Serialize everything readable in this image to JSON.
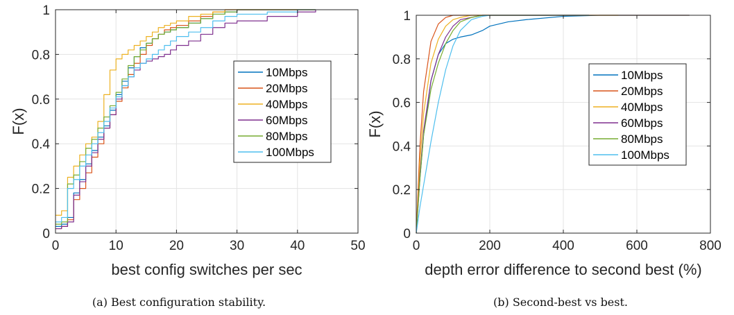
{
  "colors": [
    "#0072BD",
    "#D95319",
    "#EDB120",
    "#7E2F8E",
    "#77AC30",
    "#4DBEEE"
  ],
  "chart_data": [
    {
      "type": "line",
      "xlabel": "best config switches per sec",
      "ylabel": "F(x)",
      "xlim": [
        0,
        50
      ],
      "ylim": [
        0,
        1
      ],
      "xticks": [
        "0",
        "10",
        "20",
        "30",
        "40",
        "50"
      ],
      "yticks": [
        "0",
        "0.2",
        "0.4",
        "0.6",
        "0.8",
        "1"
      ],
      "grid": true,
      "legend_position": "center-right",
      "caption": "(a) Best configuration stability.",
      "series": [
        {
          "name": "10Mbps",
          "x": [
            0,
            1,
            2,
            3,
            4,
            5,
            6,
            7,
            8,
            9,
            10,
            11,
            12,
            13,
            14,
            15,
            16,
            17,
            18,
            19,
            20,
            22,
            24,
            26,
            28,
            30,
            35,
            40,
            43
          ],
          "y": [
            0.03,
            0.04,
            0.07,
            0.18,
            0.24,
            0.31,
            0.37,
            0.43,
            0.48,
            0.55,
            0.62,
            0.68,
            0.74,
            0.79,
            0.83,
            0.85,
            0.87,
            0.89,
            0.9,
            0.91,
            0.92,
            0.94,
            0.96,
            0.98,
            0.99,
            1.0,
            1.0,
            1.0,
            1.0
          ]
        },
        {
          "name": "20Mbps",
          "x": [
            0,
            1,
            2,
            3,
            4,
            5,
            6,
            7,
            8,
            9,
            10,
            11,
            12,
            13,
            14,
            15,
            16,
            17,
            18,
            19,
            20,
            22,
            24,
            26,
            28,
            30,
            35,
            40,
            43
          ],
          "y": [
            0.02,
            0.03,
            0.06,
            0.15,
            0.2,
            0.27,
            0.34,
            0.4,
            0.47,
            0.53,
            0.59,
            0.65,
            0.71,
            0.76,
            0.8,
            0.84,
            0.87,
            0.89,
            0.91,
            0.92,
            0.93,
            0.95,
            0.97,
            0.99,
            1.0,
            1.0,
            1.0,
            1.0,
            1.0
          ]
        },
        {
          "name": "40Mbps",
          "x": [
            0,
            1,
            2,
            3,
            4,
            5,
            6,
            7,
            8,
            9,
            10,
            11,
            12,
            13,
            14,
            15,
            16,
            17,
            18,
            19,
            20,
            22,
            24,
            26,
            28,
            30,
            35,
            40,
            43
          ],
          "y": [
            0.08,
            0.1,
            0.25,
            0.3,
            0.35,
            0.4,
            0.43,
            0.5,
            0.62,
            0.73,
            0.78,
            0.8,
            0.82,
            0.84,
            0.86,
            0.88,
            0.9,
            0.92,
            0.93,
            0.94,
            0.95,
            0.97,
            0.98,
            0.99,
            1.0,
            1.0,
            1.0,
            1.0,
            1.0
          ]
        },
        {
          "name": "60Mbps",
          "x": [
            0,
            1,
            2,
            3,
            4,
            5,
            6,
            7,
            8,
            9,
            10,
            11,
            12,
            13,
            14,
            15,
            16,
            17,
            18,
            19,
            20,
            22,
            24,
            26,
            28,
            30,
            35,
            40,
            43
          ],
          "y": [
            0.02,
            0.03,
            0.05,
            0.17,
            0.23,
            0.3,
            0.36,
            0.42,
            0.47,
            0.53,
            0.6,
            0.66,
            0.7,
            0.73,
            0.76,
            0.77,
            0.78,
            0.79,
            0.8,
            0.82,
            0.84,
            0.86,
            0.89,
            0.92,
            0.94,
            0.95,
            0.97,
            0.99,
            1.0
          ]
        },
        {
          "name": "80Mbps",
          "x": [
            0,
            1,
            2,
            3,
            4,
            5,
            6,
            7,
            8,
            9,
            10,
            11,
            12,
            13,
            14,
            15,
            16,
            17,
            18,
            19,
            20,
            22,
            24,
            26,
            28,
            30,
            35,
            40,
            43
          ],
          "y": [
            0.04,
            0.05,
            0.22,
            0.26,
            0.32,
            0.38,
            0.42,
            0.47,
            0.52,
            0.57,
            0.63,
            0.69,
            0.75,
            0.79,
            0.82,
            0.85,
            0.87,
            0.89,
            0.9,
            0.91,
            0.92,
            0.94,
            0.96,
            0.98,
            0.99,
            1.0,
            1.0,
            1.0,
            1.0
          ]
        },
        {
          "name": "100Mbps",
          "x": [
            0,
            1,
            2,
            3,
            4,
            5,
            6,
            7,
            8,
            9,
            10,
            11,
            12,
            13,
            14,
            15,
            16,
            17,
            18,
            19,
            20,
            22,
            24,
            26,
            28,
            30,
            35,
            40,
            43
          ],
          "y": [
            0.05,
            0.07,
            0.2,
            0.24,
            0.3,
            0.35,
            0.4,
            0.45,
            0.5,
            0.56,
            0.61,
            0.66,
            0.7,
            0.74,
            0.76,
            0.78,
            0.8,
            0.82,
            0.84,
            0.86,
            0.88,
            0.9,
            0.92,
            0.95,
            0.97,
            0.98,
            0.99,
            1.0,
            1.0
          ]
        }
      ]
    },
    {
      "type": "line",
      "xlabel": "depth error difference to second best (%)",
      "ylabel": "F(x)",
      "xlim": [
        0,
        800
      ],
      "ylim": [
        0,
        1
      ],
      "xticks": [
        "0",
        "200",
        "400",
        "600",
        "800"
      ],
      "yticks": [
        "0",
        "0.2",
        "0.4",
        "0.6",
        "0.8",
        "1"
      ],
      "grid": true,
      "legend_position": "center-right",
      "caption": "(b) Second-best vs best.",
      "series": [
        {
          "name": "10Mbps",
          "x": [
            0,
            10,
            20,
            40,
            60,
            80,
            100,
            120,
            150,
            180,
            200,
            250,
            300,
            400,
            500,
            600,
            743
          ],
          "y": [
            0,
            0.25,
            0.45,
            0.7,
            0.82,
            0.87,
            0.89,
            0.9,
            0.91,
            0.93,
            0.95,
            0.97,
            0.98,
            0.995,
            1.0,
            1.0,
            1.0
          ]
        },
        {
          "name": "20Mbps",
          "x": [
            0,
            10,
            20,
            40,
            60,
            80,
            100,
            120,
            150,
            180,
            200,
            250,
            300,
            400,
            500,
            600,
            743
          ],
          "y": [
            0,
            0.4,
            0.65,
            0.88,
            0.96,
            0.99,
            1.0,
            1.0,
            1.0,
            1.0,
            1.0,
            1.0,
            1.0,
            1.0,
            1.0,
            1.0,
            1.0
          ]
        },
        {
          "name": "40Mbps",
          "x": [
            0,
            10,
            20,
            40,
            60,
            80,
            100,
            120,
            150,
            180,
            200,
            250,
            300,
            400,
            500,
            550
          ],
          "y": [
            0,
            0.33,
            0.55,
            0.78,
            0.89,
            0.95,
            0.98,
            0.99,
            1.0,
            1.0,
            1.0,
            1.0,
            1.0,
            1.0,
            1.0,
            1.0
          ]
        },
        {
          "name": "60Mbps",
          "x": [
            0,
            10,
            20,
            40,
            60,
            80,
            100,
            120,
            150,
            180,
            200,
            250,
            300,
            400,
            470
          ],
          "y": [
            0,
            0.27,
            0.47,
            0.7,
            0.82,
            0.9,
            0.95,
            0.98,
            0.99,
            1.0,
            1.0,
            1.0,
            1.0,
            1.0,
            1.0
          ]
        },
        {
          "name": "80Mbps",
          "x": [
            0,
            10,
            20,
            40,
            60,
            80,
            100,
            120,
            150,
            180,
            200,
            250,
            300,
            400,
            470
          ],
          "y": [
            0,
            0.25,
            0.45,
            0.66,
            0.78,
            0.87,
            0.93,
            0.97,
            0.99,
            1.0,
            1.0,
            1.0,
            1.0,
            1.0,
            1.0
          ]
        },
        {
          "name": "100Mbps",
          "x": [
            0,
            10,
            20,
            40,
            60,
            80,
            100,
            120,
            150,
            180,
            200,
            250,
            300,
            400,
            470
          ],
          "y": [
            0,
            0.12,
            0.22,
            0.42,
            0.6,
            0.75,
            0.86,
            0.93,
            0.98,
            0.995,
            1.0,
            1.0,
            1.0,
            1.0,
            1.0
          ]
        }
      ]
    }
  ]
}
